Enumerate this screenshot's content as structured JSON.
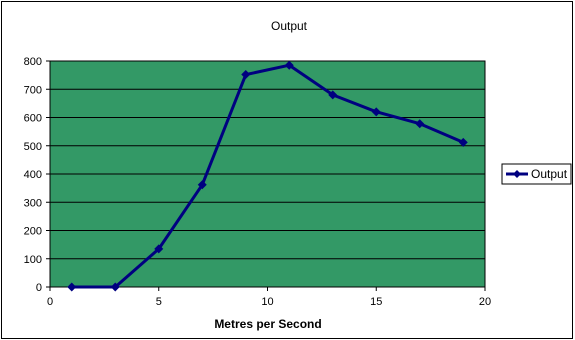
{
  "chart_data": {
    "type": "line",
    "title": "Output",
    "xlabel": "Metres per Second",
    "ylabel": "",
    "xlim": [
      0,
      20
    ],
    "ylim": [
      0,
      800
    ],
    "xticks": [
      0,
      5,
      10,
      15,
      20
    ],
    "yticks": [
      0,
      100,
      200,
      300,
      400,
      500,
      600,
      700,
      800
    ],
    "grid": "horizontal",
    "legend_position": "right",
    "colors": {
      "plot_background": "#339966",
      "series_line": "#000080",
      "gridline": "#000000",
      "frame": "#000000"
    },
    "series": [
      {
        "name": "Output",
        "marker": "diamond",
        "x": [
          1,
          3,
          5,
          7,
          9,
          11,
          13,
          15,
          17,
          19
        ],
        "y": [
          0,
          0,
          135,
          362,
          752,
          785,
          680,
          620,
          578,
          512
        ]
      }
    ]
  }
}
